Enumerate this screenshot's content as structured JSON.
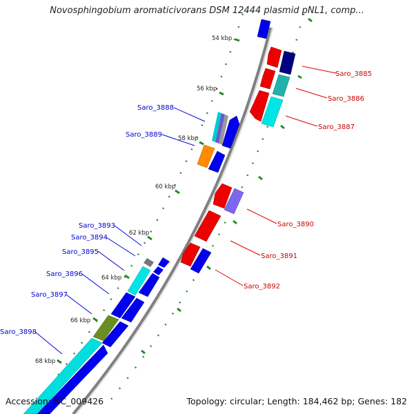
{
  "title": "Novosphingobium aromaticivorans DSM 12444 plasmid pNL1, comp...",
  "accession": "Accession: NC_009426",
  "summary": "Topology: circular; Length: 184,462 bp; Genes: 182",
  "colors": {
    "forward_label": "#0000cc",
    "reverse_label": "#cc0000",
    "backbone": "#808080",
    "tick": "#228b22"
  },
  "scale_labels": [
    "54 kbp",
    "56 kbp",
    "58 kbp",
    "60 kbp",
    "62 kbp",
    "64 kbp",
    "66 kbp",
    "68 kbp"
  ],
  "gene_labels": {
    "reverse": [
      "Saro_3885",
      "Saro_3886",
      "Saro_3887",
      "Saro_3890",
      "Saro_3891",
      "Saro_3892"
    ],
    "forward": [
      "Saro_3888",
      "Saro_3889",
      "Saro_3893",
      "Saro_3894",
      "Saro_3895",
      "Saro_3896",
      "Saro_3897",
      "Saro_3898"
    ]
  }
}
